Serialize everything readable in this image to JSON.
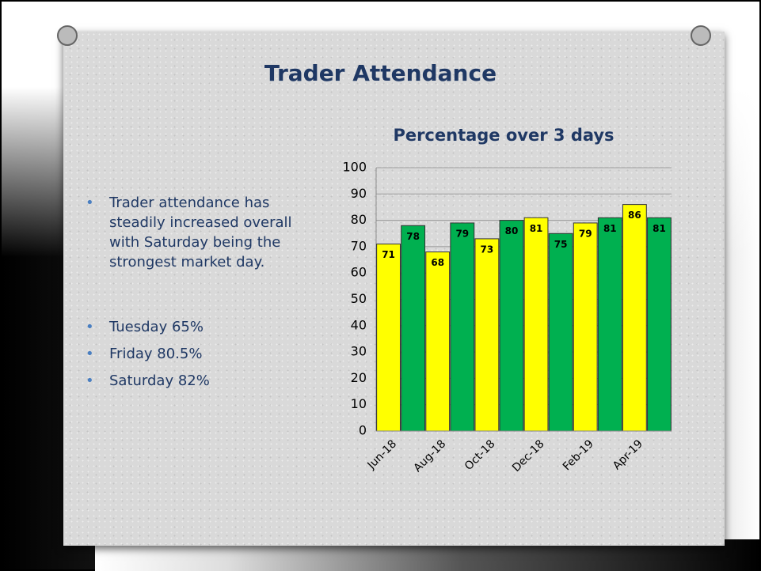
{
  "slide_title": "Trader Attendance",
  "summary": [
    "Trader attendance has steadily increased overall with Saturday being the strongest market day."
  ],
  "day_rates": [
    "Tuesday  65%",
    "Friday  80.5%",
    "Saturday  82%"
  ],
  "chart_data": {
    "type": "bar",
    "title": "Percentage over 3 days",
    "categories": [
      "Jun-18",
      null,
      "Aug-18",
      null,
      "Oct-18",
      null,
      "Dec-18",
      null,
      "Feb-19",
      null,
      "Apr-19",
      null
    ],
    "values": [
      71,
      78,
      68,
      79,
      73,
      80,
      81,
      75,
      79,
      81,
      86,
      81
    ],
    "colors": [
      "#ffff00",
      "#00b050",
      "#ffff00",
      "#00b050",
      "#ffff00",
      "#00b050",
      "#ffff00",
      "#00b050",
      "#ffff00",
      "#00b050",
      "#ffff00",
      "#00b050"
    ],
    "ylim": [
      0,
      100
    ],
    "yticks": [
      0,
      10,
      20,
      30,
      40,
      50,
      60,
      70,
      80,
      90,
      100
    ],
    "grid": true
  }
}
